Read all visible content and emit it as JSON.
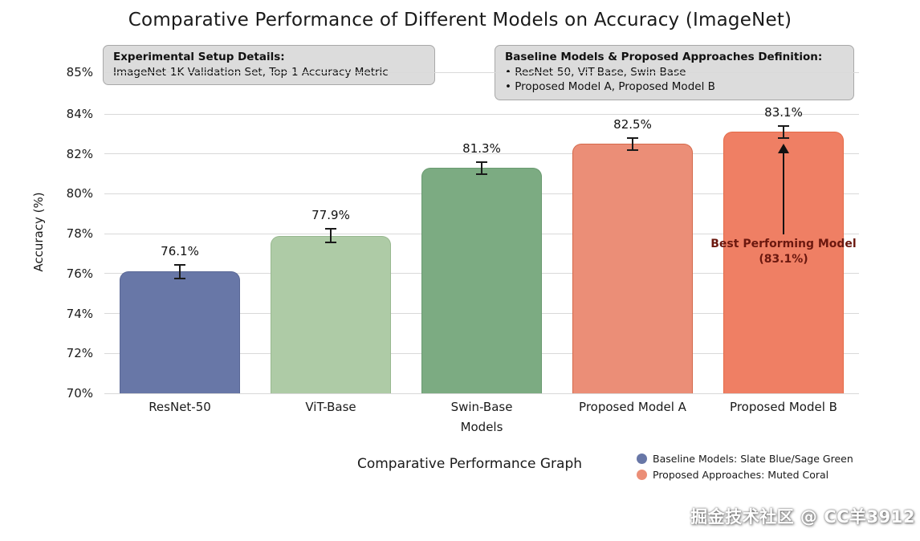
{
  "watermark": "掘金技术社区 @ CC羊3912",
  "chart_data": {
    "type": "bar",
    "title": "Comparative Performance of Different Models on Accuracy (ImageNet)",
    "xlabel": "Models",
    "ylabel": "Accuracy (%)",
    "caption": "Comparative Performance Graph",
    "ylim": [
      70,
      85
    ],
    "yticks": [
      70,
      72,
      74,
      76,
      78,
      80,
      82,
      84,
      85
    ],
    "ytick_suffix": "%",
    "grid": true,
    "categories": [
      "ResNet-50",
      "ViT-Base",
      "Swin-Base",
      "Proposed Model A",
      "Proposed Model B"
    ],
    "values": [
      76.1,
      77.9,
      81.3,
      82.5,
      83.1
    ],
    "errors": [
      0.35,
      0.35,
      0.3,
      0.3,
      0.3
    ],
    "value_labels": [
      "76.1%",
      "77.9%",
      "81.3%",
      "82.5%",
      "83.1%"
    ],
    "bar_colors": [
      "#6877a7",
      "#aecba6",
      "#7cab82",
      "#eb8e77",
      "#ef7f64"
    ],
    "bar_edge_colors": [
      "#5a6896",
      "#98b890",
      "#699a70",
      "#d4694a",
      "#e56a47"
    ],
    "annotations": {
      "setup_box": {
        "title": "Experimental Setup Details:",
        "line": "ImageNet-1K Validation Set, Top-1 Accuracy Metric"
      },
      "definition_box": {
        "title": "Baseline Models & Proposed Approaches Definition:",
        "bullets": [
          "• ResNet-50, ViT-Base, Swin-Base",
          "• Proposed Model A, Proposed Model B"
        ]
      },
      "best_model": {
        "text": "Best Performing Model (83.1%)",
        "color": "#6b180f"
      }
    },
    "legend_position": "bottom-right",
    "legend": [
      {
        "label": "Baseline Models: Slate Blue/Sage Green",
        "color": "#6877a7"
      },
      {
        "label": "Proposed Approaches: Muted Coral",
        "color": "#eb8e77"
      }
    ]
  }
}
